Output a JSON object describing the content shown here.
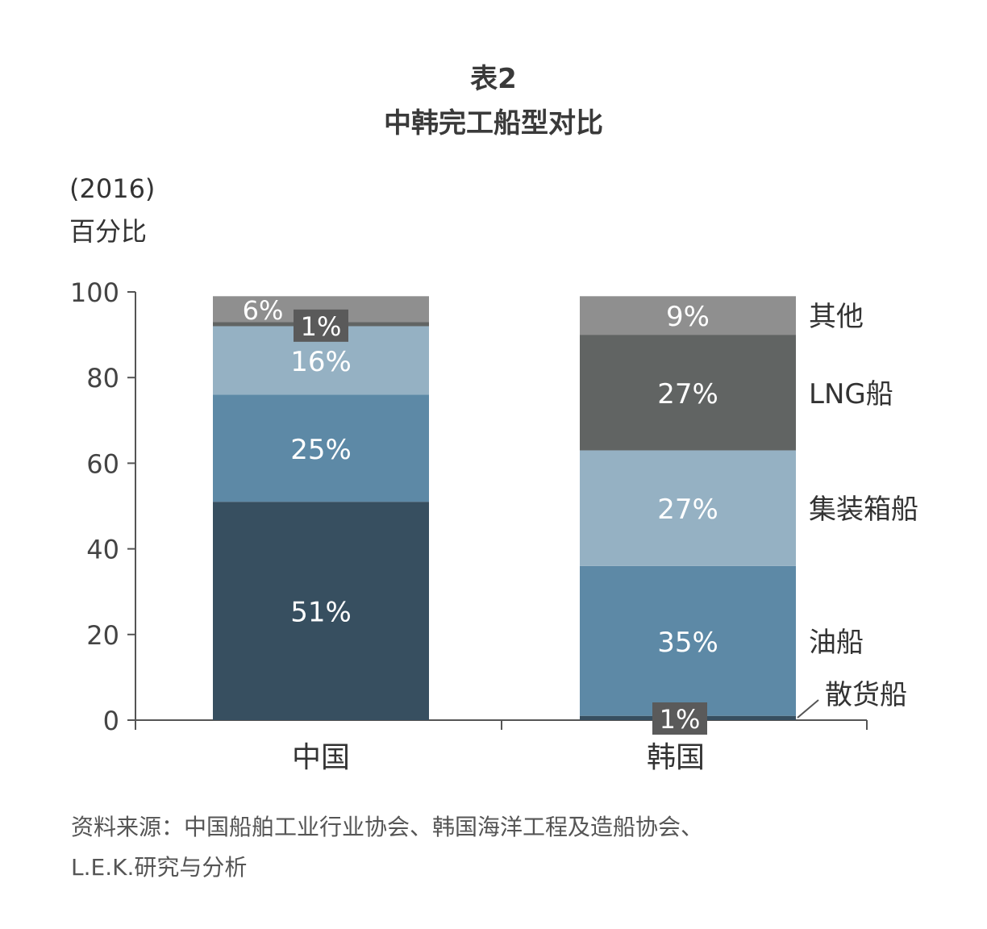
{
  "title": "表2",
  "subtitle": "中韩完工船型对比",
  "year_note": "(2016)",
  "y_unit": "百分比",
  "source_line1": "资料来源：中国船舶工业行业协会、韩国海洋工程及造船协会、",
  "source_line2": "L.E.K.研究与分析",
  "colors": {
    "bulk": "#374f60",
    "tanker": "#5d89a6",
    "container": "#95b1c3",
    "lng": "#616463",
    "other": "#8f8f8f",
    "axis": "#555555",
    "label_light": "#ffffff",
    "box_bg": "#5a5a5a"
  },
  "chart_data": {
    "type": "bar",
    "stacked": true,
    "categories": [
      "中国",
      "韩国"
    ],
    "ylim": [
      0,
      100
    ],
    "yticks": [
      0,
      20,
      40,
      60,
      80,
      100
    ],
    "series": [
      {
        "name": "散货船",
        "values": [
          51,
          1
        ],
        "labels": [
          "51%",
          "1%"
        ]
      },
      {
        "name": "油船",
        "values": [
          25,
          35
        ],
        "labels": [
          "25%",
          "35%"
        ]
      },
      {
        "name": "集装箱船",
        "values": [
          16,
          27
        ],
        "labels": [
          "16%",
          "27%"
        ]
      },
      {
        "name": "LNG船",
        "values": [
          1,
          27
        ],
        "labels": [
          "1%",
          "27%"
        ]
      },
      {
        "name": "其他",
        "values": [
          6,
          9
        ],
        "labels": [
          "6%",
          "9%"
        ]
      }
    ]
  }
}
